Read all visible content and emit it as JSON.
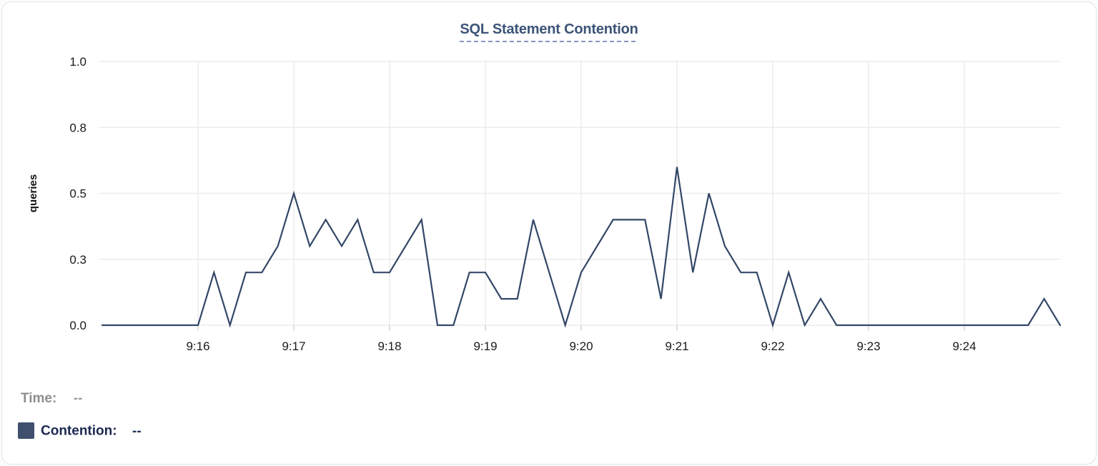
{
  "card": {
    "title": "SQL Statement Contention"
  },
  "legend": {
    "time_label": "Time:",
    "time_value": "--",
    "contention_label": "Contention:",
    "contention_value": "--"
  },
  "colors": {
    "line": "#334767",
    "swatch": "#3f4f6d",
    "title": "#3c5478",
    "title_underline": "#8a93c1",
    "grid": "#ececec",
    "tick": "#d6d6d6",
    "axis_text": "#1a1a1a",
    "time_label_text": "#8e8e8e",
    "contention_label_text": "#1b2951"
  },
  "chart_data": {
    "type": "line",
    "title": "SQL Statement Contention",
    "xlabel": "",
    "ylabel": "queries",
    "series_name": "Contention",
    "legend_position": "bottom-left",
    "grid": true,
    "ylim": [
      0,
      1.0
    ],
    "y_ticks": [
      {
        "value": 0,
        "label": "0.0"
      },
      {
        "value": 0.25,
        "label": "0.3"
      },
      {
        "value": 0.5,
        "label": "0.5"
      },
      {
        "value": 0.75,
        "label": "0.8"
      },
      {
        "value": 1.0,
        "label": "1.0"
      }
    ],
    "x_tick_labels": [
      "9:16",
      "9:17",
      "9:18",
      "9:19",
      "9:20",
      "9:21",
      "9:22",
      "9:23",
      "9:24"
    ],
    "x_start": "9:15:00",
    "x_end": "9:25:00",
    "sample_interval_sec": 10,
    "values": [
      0,
      0,
      0,
      0,
      0,
      0,
      0,
      0.2,
      0,
      0.2,
      0.2,
      0.3,
      0.5,
      0.3,
      0.4,
      0.3,
      0.4,
      0.2,
      0.2,
      0.3,
      0.4,
      0,
      0,
      0.2,
      0.2,
      0.1,
      0.1,
      0.4,
      0.2,
      0,
      0.2,
      0.3,
      0.4,
      0.4,
      0.4,
      0.1,
      0.6,
      0.2,
      0.5,
      0.3,
      0.2,
      0.2,
      0,
      0.2,
      0,
      0.1,
      0,
      0,
      0,
      0,
      0,
      0,
      0,
      0,
      0,
      0,
      0,
      0,
      0,
      0.1,
      0
    ]
  }
}
